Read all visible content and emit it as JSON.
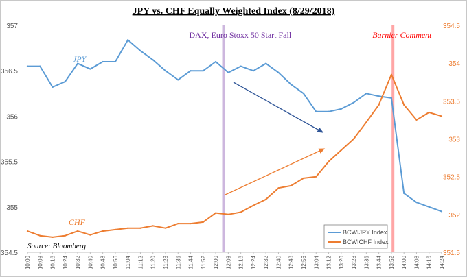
{
  "chart_data": {
    "type": "line",
    "title": "JPY vs. CHF Equally Weighted Index (8/29/2018)",
    "x_categories": [
      "10:00",
      "10:08",
      "10:16",
      "10:24",
      "10:32",
      "10:40",
      "10:48",
      "10:56",
      "11:04",
      "11:12",
      "11:20",
      "11:28",
      "11:36",
      "11:44",
      "11:52",
      "12:00",
      "12:08",
      "12:16",
      "12:24",
      "12:32",
      "12:40",
      "12:48",
      "12:56",
      "13:04",
      "13:12",
      "13:20",
      "13:28",
      "13:36",
      "13:44",
      "13:52",
      "14:00",
      "14:08",
      "14:16",
      "14:24"
    ],
    "y_left": {
      "min": 354.5,
      "max": 357,
      "ticks": [
        "354.5",
        "355",
        "355.5",
        "356",
        "356.5",
        "357"
      ]
    },
    "y_right": {
      "min": 351.5,
      "max": 354.5,
      "ticks": [
        "351.5",
        "352",
        "352.5",
        "353",
        "353.5",
        "354",
        "354.5"
      ]
    },
    "series": [
      {
        "name": "BCWIJPY Index",
        "label": "JPY",
        "color": "#5b9bd5",
        "axis": "left",
        "values": [
          356.55,
          356.55,
          356.32,
          356.38,
          356.58,
          356.52,
          356.6,
          356.6,
          356.84,
          356.72,
          356.62,
          356.5,
          356.4,
          356.5,
          356.5,
          356.6,
          356.48,
          356.55,
          356.5,
          356.58,
          356.48,
          356.35,
          356.25,
          356.05,
          356.05,
          356.08,
          356.15,
          356.25,
          356.22,
          356.2,
          355.15,
          355.05,
          355.0,
          354.95
        ]
      },
      {
        "name": "BCWICHF Index",
        "label": "CHF",
        "color": "#ed7d31",
        "axis": "right",
        "values": [
          351.78,
          351.72,
          351.7,
          351.72,
          351.78,
          351.73,
          351.78,
          351.8,
          351.82,
          351.82,
          351.85,
          351.82,
          351.88,
          351.88,
          351.9,
          352.02,
          352.0,
          352.03,
          352.12,
          352.2,
          352.35,
          352.38,
          352.48,
          352.5,
          352.7,
          352.85,
          353.0,
          353.22,
          353.45,
          353.85,
          353.45,
          353.25,
          353.35,
          353.3
        ]
      }
    ],
    "annotations": [
      {
        "text": "DAX, Euro Stoxx 50 Start Fall",
        "at": "12:05",
        "color": "#7030a0"
      },
      {
        "text": "Barnier Comment",
        "at": "13:53",
        "color": "#ff0000"
      }
    ],
    "legend_position": "bottom-right",
    "source": "Source: Bloomberg",
    "grid": false
  }
}
